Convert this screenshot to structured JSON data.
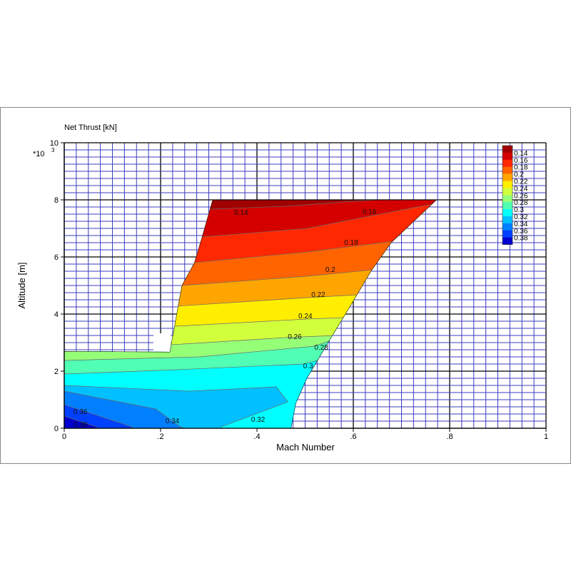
{
  "chart_data": {
    "type": "contour",
    "title": "Net Thrust [kN]",
    "xlabel": "Mach Number",
    "ylabel": "Altitude [m]",
    "y_multiplier": "*10",
    "y_multiplier_exp": "3",
    "xlim": [
      0,
      1
    ],
    "ylim": [
      0,
      10000
    ],
    "x_ticks": [
      {
        "v": 0,
        "label": "0"
      },
      {
        "v": 0.2,
        "label": ".2"
      },
      {
        "v": 0.4,
        "label": ".4"
      },
      {
        "v": 0.6,
        "label": ".6"
      },
      {
        "v": 0.8,
        "label": ".8"
      },
      {
        "v": 1,
        "label": "1"
      }
    ],
    "y_ticks": [
      {
        "v": 0,
        "label": "0"
      },
      {
        "v": 2000,
        "label": "2"
      },
      {
        "v": 4000,
        "label": "4"
      },
      {
        "v": 6000,
        "label": "6"
      },
      {
        "v": 8000,
        "label": "8"
      },
      {
        "v": 10000,
        "label": "10"
      }
    ],
    "grid": true,
    "legend_placement": "top-right",
    "levels": [
      "0.14",
      "0.16",
      "0.18",
      "0.2",
      "0.22",
      "0.24",
      "0.26",
      "0.28",
      "0.3",
      "0.32",
      "0.34",
      "0.36",
      "0.38"
    ],
    "band_colors": [
      "#a00000",
      "#d40000",
      "#ff2800",
      "#ff6400",
      "#ffa500",
      "#ffee00",
      "#d2ff3c",
      "#96ff78",
      "#50ffb4",
      "#00ffff",
      "#00c0ff",
      "#0080ff",
      "#0040ff",
      "#0000d0"
    ],
    "domain": [
      [
        0.308,
        8000
      ],
      [
        0.773,
        8000
      ],
      [
        0.679,
        6500
      ],
      [
        0.637,
        5500
      ],
      [
        0.593,
        4250
      ],
      [
        0.548,
        3000
      ],
      [
        0.504,
        1750
      ],
      [
        0.481,
        875
      ],
      [
        0.471,
        0
      ],
      [
        0,
        0
      ],
      [
        0,
        2700
      ],
      [
        0.219,
        2675
      ],
      [
        0.244,
        5000
      ],
      [
        0.27,
        5800
      ],
      [
        0.286,
        6700
      ],
      [
        0.308,
        8000
      ]
    ],
    "contours": [
      {
        "level": 0.14,
        "points": [
          [
            0,
            7650
          ],
          [
            0.307,
            7675
          ],
          [
            0.459,
            7775
          ],
          [
            0.578,
            7925
          ],
          [
            0.652,
            8000
          ],
          [
            1,
            8500
          ]
        ]
      },
      {
        "level": 0.16,
        "points": [
          [
            0,
            6650
          ],
          [
            0.286,
            6700
          ],
          [
            0.504,
            7000
          ],
          [
            0.641,
            7450
          ],
          [
            0.756,
            7825
          ],
          [
            1,
            8500
          ]
        ]
      },
      {
        "level": 0.18,
        "points": [
          [
            0,
            5750
          ],
          [
            0.27,
            5800
          ],
          [
            0.504,
            6175
          ],
          [
            0.696,
            6575
          ],
          [
            1,
            7200
          ]
        ]
      },
      {
        "level": 0.2,
        "points": [
          [
            0,
            4950
          ],
          [
            0.244,
            5000
          ],
          [
            0.504,
            5325
          ],
          [
            0.641,
            5550
          ],
          [
            1,
            6100
          ]
        ]
      },
      {
        "level": 0.22,
        "points": [
          [
            0,
            4250
          ],
          [
            0.233,
            4275
          ],
          [
            0.504,
            4575
          ],
          [
            0.612,
            4675
          ],
          [
            1,
            5100
          ]
        ]
      },
      {
        "level": 0.24,
        "points": [
          [
            0,
            3550
          ],
          [
            0.232,
            3575
          ],
          [
            0.504,
            3825
          ],
          [
            0.582,
            3875
          ],
          [
            1,
            4200
          ]
        ]
      },
      {
        "level": 0.26,
        "points": [
          [
            0,
            2900
          ],
          [
            0.222,
            2925
          ],
          [
            0.459,
            3175
          ],
          [
            0.563,
            3250
          ],
          [
            1,
            3600
          ]
        ]
      },
      {
        "level": 0.28,
        "points": [
          [
            0,
            2375
          ],
          [
            0.281,
            2500
          ],
          [
            0.519,
            2875
          ],
          [
            0.563,
            3125
          ],
          [
            1,
            3500
          ]
        ]
      },
      {
        "level": 0.3,
        "points": [
          [
            0,
            1900
          ],
          [
            0.233,
            2050
          ],
          [
            0.496,
            2250
          ],
          [
            0.526,
            2375
          ],
          [
            1,
            2700
          ]
        ]
      },
      {
        "level": 0.32,
        "points": [
          [
            0,
            1500
          ],
          [
            0.261,
            1300
          ],
          [
            0.44,
            1450
          ],
          [
            0.464,
            925
          ],
          [
            0.326,
            50
          ],
          [
            0.326,
            0
          ]
        ]
      },
      {
        "level": 0.34,
        "points": [
          [
            0,
            1300
          ],
          [
            0.19,
            675
          ],
          [
            0.241,
            50
          ],
          [
            0.25,
            0
          ]
        ]
      },
      {
        "level": 0.36,
        "points": [
          [
            0,
            825
          ],
          [
            0.141,
            50
          ],
          [
            0.14,
            0
          ]
        ]
      },
      {
        "level": 0.38,
        "points": [
          [
            0,
            425
          ],
          [
            0.067,
            50
          ],
          [
            0.07,
            0
          ]
        ]
      }
    ],
    "contour_labels": [
      {
        "text": "0.14",
        "x": 0.353,
        "y": 7550
      },
      {
        "text": "0.16",
        "x": 0.619,
        "y": 7575
      },
      {
        "text": "0.18",
        "x": 0.581,
        "y": 6500
      },
      {
        "text": "0.2",
        "x": 0.542,
        "y": 5550
      },
      {
        "text": "0.22",
        "x": 0.513,
        "y": 4675
      },
      {
        "text": "0.24",
        "x": 0.486,
        "y": 3925
      },
      {
        "text": "0.26",
        "x": 0.464,
        "y": 3200
      },
      {
        "text": "0.28",
        "x": 0.519,
        "y": 2825
      },
      {
        "text": "0.3",
        "x": 0.496,
        "y": 2175
      },
      {
        "text": "0.32",
        "x": 0.388,
        "y": 300
      },
      {
        "text": "0.34",
        "x": 0.21,
        "y": 250
      },
      {
        "text": "0.36",
        "x": 0.019,
        "y": 575
      },
      {
        "text": "0.38",
        "x": 0.019,
        "y": 125
      }
    ]
  }
}
